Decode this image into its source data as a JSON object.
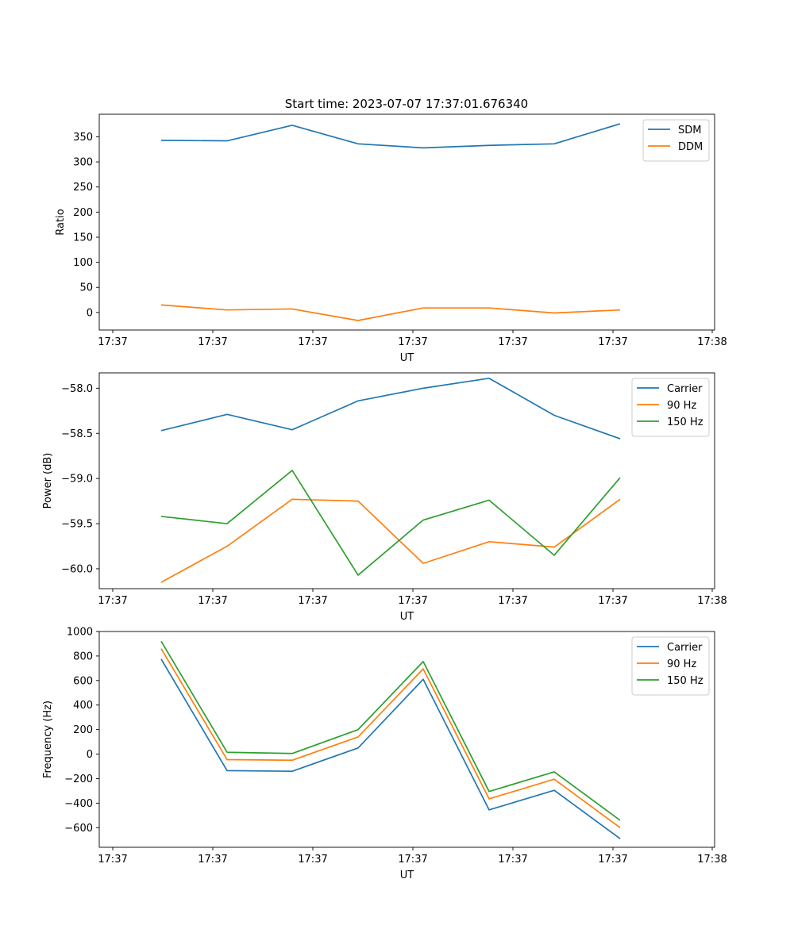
{
  "figure_title": "Start time: 2023-07-07 17:37:01.676340",
  "colors": {
    "blue": "#1f77b4",
    "orange": "#ff7f0e",
    "green": "#2ca02c"
  },
  "chart_data": [
    {
      "type": "line",
      "title": "Start time: 2023-07-07 17:37:01.676340",
      "xlabel": "UT",
      "ylabel": "Ratio",
      "x_tick_labels": [
        "17:37",
        "17:37",
        "17:37",
        "17:37",
        "17:37",
        "17:37",
        "17:38"
      ],
      "x_points": [
        1,
        2,
        3,
        4,
        5,
        6,
        7,
        8
      ],
      "xlim": [
        0.19,
        9.2
      ],
      "ylim": [
        -35,
        395
      ],
      "y_ticks": [
        0,
        50,
        100,
        150,
        200,
        250,
        300,
        350
      ],
      "legend_position": "top-right",
      "series": [
        {
          "name": "SDM",
          "color": "#1f77b4",
          "values": [
            343,
            342,
            373,
            336,
            328,
            333,
            336,
            376
          ]
        },
        {
          "name": "DDM",
          "color": "#ff7f0e",
          "values": [
            15,
            5,
            7,
            -16,
            9,
            9,
            -1,
            5
          ]
        }
      ]
    },
    {
      "type": "line",
      "xlabel": "UT",
      "ylabel": "Power (dB)",
      "x_tick_labels": [
        "17:37",
        "17:37",
        "17:37",
        "17:37",
        "17:37",
        "17:37",
        "17:38"
      ],
      "x_points": [
        1,
        2,
        3,
        4,
        5,
        6,
        7,
        8
      ],
      "xlim": [
        0.19,
        9.2
      ],
      "ylim": [
        -60.22,
        -57.83
      ],
      "y_ticks": [
        -60.0,
        -59.5,
        -59.0,
        -58.5,
        -58.0
      ],
      "y_tick_labels": [
        "−60.0",
        "−59.5",
        "−59.0",
        "−58.5",
        "−58.0"
      ],
      "legend_position": "top-right",
      "series": [
        {
          "name": "Carrier",
          "color": "#1f77b4",
          "values": [
            -58.47,
            -58.29,
            -58.46,
            -58.14,
            -58.0,
            -57.89,
            -58.3,
            -58.56
          ]
        },
        {
          "name": "90 Hz",
          "color": "#ff7f0e",
          "values": [
            -60.15,
            -59.75,
            -59.23,
            -59.25,
            -59.94,
            -59.7,
            -59.76,
            -59.23
          ]
        },
        {
          "name": "150 Hz",
          "color": "#2ca02c",
          "values": [
            -59.42,
            -59.5,
            -58.91,
            -60.07,
            -59.46,
            -59.24,
            -59.85,
            -58.99
          ]
        }
      ]
    },
    {
      "type": "line",
      "xlabel": "UT",
      "ylabel": "Frequency (Hz)",
      "x_tick_labels": [
        "17:37",
        "17:37",
        "17:37",
        "17:37",
        "17:37",
        "17:37",
        "17:38"
      ],
      "x_points": [
        1,
        2,
        3,
        4,
        5,
        6,
        7,
        8
      ],
      "xlim": [
        0.19,
        9.2
      ],
      "ylim": [
        -760,
        1000
      ],
      "y_ticks": [
        -600,
        -400,
        -200,
        0,
        200,
        400,
        600,
        800,
        1000
      ],
      "y_tick_labels": [
        "−600",
        "−400",
        "−200",
        "0",
        "200",
        "400",
        "600",
        "800",
        "1000"
      ],
      "legend_position": "top-right",
      "series": [
        {
          "name": "Carrier",
          "color": "#1f77b4",
          "values": [
            775,
            -135,
            -140,
            50,
            610,
            -455,
            -295,
            -690
          ]
        },
        {
          "name": "90 Hz",
          "color": "#ff7f0e",
          "values": [
            860,
            -45,
            -50,
            140,
            695,
            -365,
            -205,
            -600
          ]
        },
        {
          "name": "150 Hz",
          "color": "#2ca02c",
          "values": [
            920,
            15,
            5,
            200,
            755,
            -305,
            -145,
            -540
          ]
        }
      ]
    }
  ]
}
